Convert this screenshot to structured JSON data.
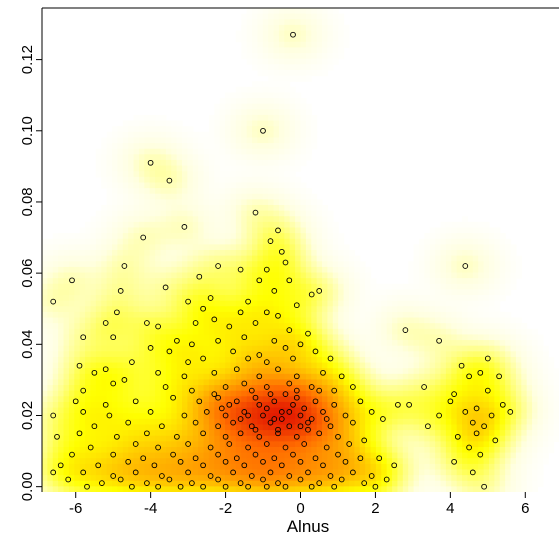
{
  "chart_data": {
    "type": "scatter",
    "title": "",
    "xlabel": "Alnus",
    "ylabel": "",
    "xlim": [
      -6.9,
      6.9
    ],
    "ylim": [
      -0.0015,
      0.1345
    ],
    "xticks": [
      -6,
      -4,
      -2,
      0,
      2,
      4,
      6
    ],
    "yticks": [
      0.0,
      0.02,
      0.04,
      0.06,
      0.08,
      0.1,
      0.12
    ],
    "x_tick_labels": [
      "-6",
      "-4",
      "-2",
      "0",
      "2",
      "4",
      "6"
    ],
    "y_tick_labels": [
      "0.00",
      "0.02",
      "0.04",
      "0.06",
      "0.08",
      "0.10",
      "0.12"
    ],
    "grid": false,
    "background": "2D kernel density heat map (white → yellow → orange → red)",
    "density_colors": [
      "#ffffff",
      "#ffffe0",
      "#ffff80",
      "#ffff00",
      "#ffb400",
      "#ff6a00",
      "#e31a00"
    ],
    "density_peaks": [
      {
        "x": -0.3,
        "y": 0.021,
        "level": 1.0
      },
      {
        "x": -2.5,
        "y": 0.002,
        "level": 0.85
      },
      {
        "x": 0.6,
        "y": 0.026,
        "level": 0.7
      },
      {
        "x": -3.6,
        "y": 0.004,
        "level": 0.45
      }
    ],
    "points": [
      [
        -0.2,
        0.127
      ],
      [
        -1.0,
        0.1
      ],
      [
        -4.0,
        0.091
      ],
      [
        -3.5,
        0.086
      ],
      [
        -1.2,
        0.077
      ],
      [
        -3.1,
        0.073
      ],
      [
        -0.6,
        0.072
      ],
      [
        -0.8,
        0.069
      ],
      [
        -4.2,
        0.07
      ],
      [
        -0.5,
        0.066
      ],
      [
        -2.2,
        0.062
      ],
      [
        -0.9,
        0.061
      ],
      [
        -4.7,
        0.062
      ],
      [
        -1.6,
        0.061
      ],
      [
        4.4,
        0.062
      ],
      [
        -0.4,
        0.063
      ],
      [
        -6.1,
        0.058
      ],
      [
        -2.7,
        0.059
      ],
      [
        -1.1,
        0.058
      ],
      [
        -0.3,
        0.058
      ],
      [
        -4.8,
        0.055
      ],
      [
        -3.6,
        0.056
      ],
      [
        -0.7,
        0.055
      ],
      [
        0.5,
        0.055
      ],
      [
        -6.6,
        0.052
      ],
      [
        -3.0,
        0.052
      ],
      [
        -2.4,
        0.053
      ],
      [
        -1.4,
        0.052
      ],
      [
        0.3,
        0.054
      ],
      [
        -0.1,
        0.051
      ],
      [
        -4.9,
        0.049
      ],
      [
        -2.6,
        0.05
      ],
      [
        -1.6,
        0.049
      ],
      [
        -0.9,
        0.049
      ],
      [
        -5.2,
        0.046
      ],
      [
        -4.1,
        0.046
      ],
      [
        -3.8,
        0.045
      ],
      [
        -2.8,
        0.046
      ],
      [
        -2.3,
        0.047
      ],
      [
        -0.6,
        0.048
      ],
      [
        -1.9,
        0.045
      ],
      [
        -1.2,
        0.046
      ],
      [
        -0.3,
        0.044
      ],
      [
        0.2,
        0.043
      ],
      [
        -5.8,
        0.042
      ],
      [
        -5.0,
        0.042
      ],
      [
        -3.3,
        0.041
      ],
      [
        -2.9,
        0.04
      ],
      [
        -2.2,
        0.041
      ],
      [
        -1.5,
        0.042
      ],
      [
        -0.7,
        0.041
      ],
      [
        0.0,
        0.04
      ],
      [
        2.8,
        0.044
      ],
      [
        3.7,
        0.041
      ],
      [
        -4.0,
        0.039
      ],
      [
        -3.5,
        0.038
      ],
      [
        -1.8,
        0.038
      ],
      [
        -1.1,
        0.037
      ],
      [
        -0.4,
        0.039
      ],
      [
        0.4,
        0.038
      ],
      [
        -5.9,
        0.034
      ],
      [
        -5.2,
        0.033
      ],
      [
        -4.5,
        0.035
      ],
      [
        -3.0,
        0.035
      ],
      [
        -2.6,
        0.036
      ],
      [
        -1.4,
        0.036
      ],
      [
        -0.9,
        0.035
      ],
      [
        -0.2,
        0.036
      ],
      [
        0.8,
        0.036
      ],
      [
        4.3,
        0.034
      ],
      [
        5.0,
        0.036
      ],
      [
        -5.5,
        0.032
      ],
      [
        -4.7,
        0.03
      ],
      [
        -3.8,
        0.032
      ],
      [
        -3.1,
        0.031
      ],
      [
        -2.3,
        0.032
      ],
      [
        -1.7,
        0.033
      ],
      [
        -1.1,
        0.031
      ],
      [
        -0.6,
        0.033
      ],
      [
        -0.1,
        0.031
      ],
      [
        0.6,
        0.032
      ],
      [
        1.1,
        0.031
      ],
      [
        4.5,
        0.031
      ],
      [
        4.8,
        0.032
      ],
      [
        5.3,
        0.031
      ],
      [
        -5.8,
        0.027
      ],
      [
        -5.0,
        0.029
      ],
      [
        -3.6,
        0.028
      ],
      [
        -2.9,
        0.027
      ],
      [
        -2.0,
        0.028
      ],
      [
        -1.5,
        0.029
      ],
      [
        -0.9,
        0.028
      ],
      [
        -0.3,
        0.029
      ],
      [
        0.3,
        0.028
      ],
      [
        0.9,
        0.027
      ],
      [
        1.4,
        0.028
      ],
      [
        3.3,
        0.028
      ],
      [
        4.1,
        0.026
      ],
      [
        5.0,
        0.027
      ],
      [
        -6.0,
        0.024
      ],
      [
        -5.2,
        0.023
      ],
      [
        -4.4,
        0.024
      ],
      [
        -3.4,
        0.025
      ],
      [
        -2.7,
        0.024
      ],
      [
        -2.2,
        0.025
      ],
      [
        -1.7,
        0.024
      ],
      [
        -1.2,
        0.025
      ],
      [
        -0.7,
        0.024
      ],
      [
        -0.1,
        0.025
      ],
      [
        0.4,
        0.024
      ],
      [
        0.9,
        0.023
      ],
      [
        1.6,
        0.024
      ],
      [
        2.6,
        0.023
      ],
      [
        2.9,
        0.023
      ],
      [
        4.0,
        0.024
      ],
      [
        4.7,
        0.022
      ],
      [
        5.4,
        0.023
      ],
      [
        -6.6,
        0.02
      ],
      [
        -5.8,
        0.021
      ],
      [
        -5.1,
        0.02
      ],
      [
        -4.0,
        0.021
      ],
      [
        -3.1,
        0.02
      ],
      [
        -2.5,
        0.021
      ],
      [
        -2.0,
        0.02
      ],
      [
        -1.5,
        0.021
      ],
      [
        -1.0,
        0.02
      ],
      [
        -0.5,
        0.021
      ],
      [
        0.0,
        0.02
      ],
      [
        0.6,
        0.021
      ],
      [
        1.2,
        0.02
      ],
      [
        1.9,
        0.021
      ],
      [
        2.2,
        0.019
      ],
      [
        3.7,
        0.02
      ],
      [
        4.4,
        0.021
      ],
      [
        5.1,
        0.02
      ],
      [
        5.6,
        0.021
      ],
      [
        -5.5,
        0.017
      ],
      [
        -4.6,
        0.018
      ],
      [
        -3.7,
        0.017
      ],
      [
        -2.8,
        0.018
      ],
      [
        -2.2,
        0.017
      ],
      [
        -1.8,
        0.018
      ],
      [
        -1.3,
        0.017
      ],
      [
        -0.8,
        0.018
      ],
      [
        -0.3,
        0.017
      ],
      [
        0.2,
        0.018
      ],
      [
        0.8,
        0.017
      ],
      [
        1.4,
        0.018
      ],
      [
        3.4,
        0.017
      ],
      [
        4.6,
        0.018
      ],
      [
        4.9,
        0.017
      ],
      [
        -6.5,
        0.014
      ],
      [
        -5.9,
        0.015
      ],
      [
        -4.9,
        0.014
      ],
      [
        -4.1,
        0.015
      ],
      [
        -3.3,
        0.014
      ],
      [
        -2.6,
        0.015
      ],
      [
        -2.0,
        0.014
      ],
      [
        -1.6,
        0.015
      ],
      [
        -1.1,
        0.014
      ],
      [
        -0.6,
        0.015
      ],
      [
        -0.1,
        0.014
      ],
      [
        0.5,
        0.015
      ],
      [
        1.0,
        0.014
      ],
      [
        1.7,
        0.013
      ],
      [
        4.2,
        0.014
      ],
      [
        4.7,
        0.015
      ],
      [
        5.2,
        0.013
      ],
      [
        -5.6,
        0.011
      ],
      [
        -4.4,
        0.012
      ],
      [
        -3.8,
        0.011
      ],
      [
        -3.0,
        0.012
      ],
      [
        -2.4,
        0.011
      ],
      [
        -1.9,
        0.012
      ],
      [
        -1.4,
        0.011
      ],
      [
        -0.9,
        0.012
      ],
      [
        -0.4,
        0.011
      ],
      [
        0.1,
        0.012
      ],
      [
        0.7,
        0.011
      ],
      [
        1.3,
        0.012
      ],
      [
        4.5,
        0.011
      ],
      [
        -6.1,
        0.009
      ],
      [
        -5.0,
        0.009
      ],
      [
        -4.2,
        0.008
      ],
      [
        -3.4,
        0.009
      ],
      [
        -2.8,
        0.008
      ],
      [
        -2.2,
        0.009
      ],
      [
        -1.7,
        0.008
      ],
      [
        -1.2,
        0.009
      ],
      [
        -0.7,
        0.008
      ],
      [
        -0.2,
        0.009
      ],
      [
        0.4,
        0.008
      ],
      [
        1.0,
        0.009
      ],
      [
        1.6,
        0.008
      ],
      [
        2.1,
        0.008
      ],
      [
        4.8,
        0.009
      ],
      [
        -6.4,
        0.006
      ],
      [
        -5.4,
        0.006
      ],
      [
        -4.6,
        0.007
      ],
      [
        -3.9,
        0.006
      ],
      [
        -3.2,
        0.007
      ],
      [
        -2.6,
        0.006
      ],
      [
        -2.0,
        0.007
      ],
      [
        -1.5,
        0.006
      ],
      [
        -1.0,
        0.007
      ],
      [
        -0.5,
        0.006
      ],
      [
        0.0,
        0.007
      ],
      [
        0.6,
        0.006
      ],
      [
        1.2,
        0.007
      ],
      [
        2.5,
        0.006
      ],
      [
        4.1,
        0.007
      ],
      [
        -6.6,
        0.004
      ],
      [
        -5.8,
        0.004
      ],
      [
        -5.0,
        0.003
      ],
      [
        -4.4,
        0.004
      ],
      [
        -3.7,
        0.003
      ],
      [
        -3.0,
        0.004
      ],
      [
        -2.4,
        0.003
      ],
      [
        -1.8,
        0.004
      ],
      [
        -1.3,
        0.003
      ],
      [
        -0.8,
        0.004
      ],
      [
        -0.3,
        0.003
      ],
      [
        0.2,
        0.004
      ],
      [
        0.8,
        0.003
      ],
      [
        1.4,
        0.004
      ],
      [
        1.9,
        0.003
      ],
      [
        4.6,
        0.004
      ],
      [
        -6.2,
        0.002
      ],
      [
        -5.3,
        0.001
      ],
      [
        -4.8,
        0.002
      ],
      [
        -4.1,
        0.001
      ],
      [
        -3.5,
        0.002
      ],
      [
        -2.9,
        0.001
      ],
      [
        -2.2,
        0.002
      ],
      [
        -1.6,
        0.001
      ],
      [
        -1.0,
        0.002
      ],
      [
        -0.6,
        0.001
      ],
      [
        0.0,
        0.002
      ],
      [
        0.5,
        0.001
      ],
      [
        1.1,
        0.002
      ],
      [
        1.7,
        0.001
      ],
      [
        2.3,
        0.002
      ],
      [
        -5.7,
        0.0
      ],
      [
        -4.5,
        0.0
      ],
      [
        -3.8,
        0.0
      ],
      [
        -3.2,
        0.0
      ],
      [
        -2.6,
        0.0
      ],
      [
        -2.0,
        0.0
      ],
      [
        -1.4,
        0.0
      ],
      [
        -0.9,
        0.0
      ],
      [
        -0.4,
        0.0
      ],
      [
        0.3,
        0.0
      ],
      [
        0.9,
        0.0
      ],
      [
        2.0,
        0.0
      ],
      [
        4.9,
        0.0
      ],
      [
        -2.3,
        0.026
      ],
      [
        -1.9,
        0.023
      ],
      [
        -1.3,
        0.027
      ],
      [
        -0.9,
        0.022
      ],
      [
        -0.4,
        0.026
      ],
      [
        0.1,
        0.022
      ],
      [
        0.5,
        0.027
      ],
      [
        -0.7,
        0.019
      ],
      [
        -0.2,
        0.023
      ],
      [
        0.3,
        0.019
      ],
      [
        -1.6,
        0.019
      ],
      [
        -1.1,
        0.023
      ],
      [
        -0.5,
        0.019
      ],
      [
        0.0,
        0.017
      ],
      [
        -0.3,
        0.021
      ],
      [
        -0.8,
        0.026
      ],
      [
        -1.4,
        0.02
      ],
      [
        0.7,
        0.019
      ],
      [
        -2.1,
        0.022
      ],
      [
        -0.1,
        0.027
      ],
      [
        -0.6,
        0.016
      ],
      [
        0.2,
        0.016
      ],
      [
        -1.2,
        0.016
      ]
    ]
  }
}
